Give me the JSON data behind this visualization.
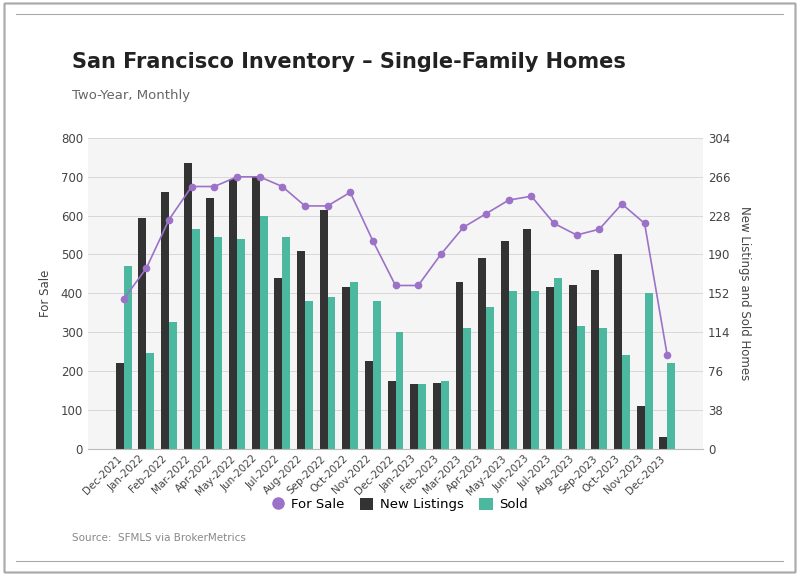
{
  "title": "San Francisco Inventory – Single-Family Homes",
  "subtitle": "Two-Year, Monthly",
  "source": "Source:  SFMLS via BrokerMetrics",
  "ylabel_left": "For Sale",
  "ylabel_right": "New Listings and Sold Homes",
  "categories": [
    "Dec-2021",
    "Jan-2022",
    "Feb-2022",
    "Mar-2022",
    "Apr-2022",
    "May-2022",
    "Jun-2022",
    "Jul-2022",
    "Aug-2022",
    "Sep-2022",
    "Oct-2022",
    "Nov-2022",
    "Dec-2022",
    "Jan-2023",
    "Feb-2023",
    "Mar-2023",
    "Apr-2023",
    "May-2023",
    "Jun-2023",
    "Jul-2023",
    "Aug-2023",
    "Sep-2023",
    "Oct-2023",
    "Nov-2023",
    "Dec-2023"
  ],
  "for_sale": [
    385,
    465,
    590,
    675,
    675,
    700,
    700,
    675,
    625,
    625,
    660,
    535,
    420,
    420,
    500,
    570,
    605,
    640,
    650,
    580,
    550,
    565,
    630,
    580,
    240
  ],
  "new_listings": [
    220,
    595,
    660,
    735,
    645,
    695,
    700,
    440,
    510,
    615,
    415,
    225,
    175,
    165,
    170,
    430,
    490,
    535,
    565,
    415,
    420,
    460,
    500,
    110,
    30
  ],
  "sold": [
    470,
    245,
    325,
    565,
    545,
    540,
    600,
    545,
    380,
    390,
    430,
    380,
    300,
    165,
    175,
    310,
    365,
    405,
    405,
    440,
    315,
    310,
    240,
    400,
    220
  ],
  "for_sale_color": "#9b72c8",
  "new_listings_color": "#333333",
  "sold_color": "#4cb8a0",
  "ylim_left": [
    0,
    800
  ],
  "ylim_right": [
    0,
    304
  ],
  "yticks_left": [
    0,
    100,
    200,
    300,
    400,
    500,
    600,
    700,
    800
  ],
  "yticks_right": [
    0,
    38,
    76,
    114,
    152,
    190,
    228,
    266,
    304
  ],
  "background_color": "#ffffff",
  "plot_bg_color": "#f5f5f5",
  "title_fontsize": 15,
  "subtitle_fontsize": 9.5,
  "axis_fontsize": 8.5,
  "border_color": "#222222"
}
